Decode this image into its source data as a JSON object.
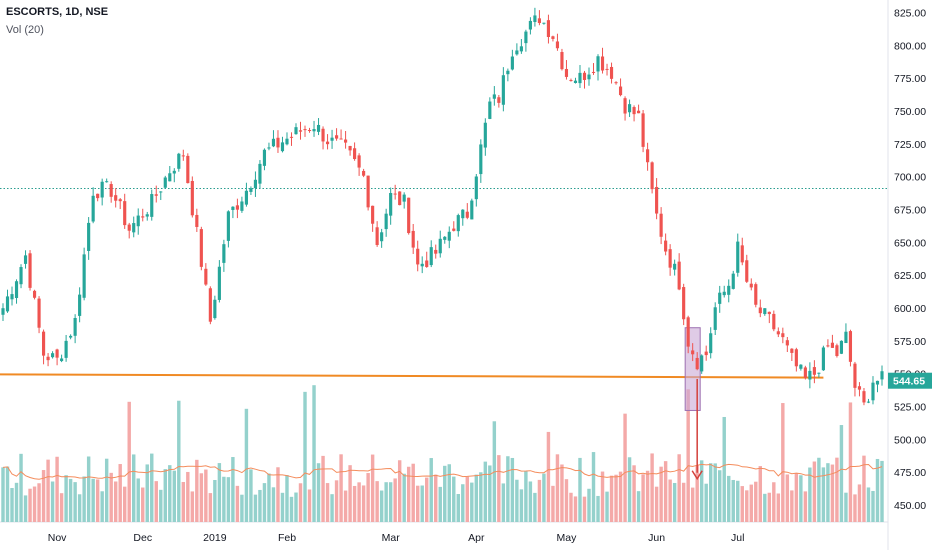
{
  "header": {
    "symbol_line": "ESCORTS, 1D, NSE",
    "volume_indicator": "Vol (20)"
  },
  "colors": {
    "up": "#26a69a",
    "down": "#ef5350",
    "vol_up": "#94d1cc",
    "vol_down": "#f4a9a8",
    "ma": "#f48c5c",
    "support": "#f08a24",
    "dotted": "#2a9d8f",
    "marker": "#d3403a",
    "box_fill": "#c9a8d6",
    "box_stroke": "#9c6fb0"
  },
  "chart_data": {
    "type": "candlestick",
    "title": "ESCORTS, 1D, NSE",
    "y_axis": {
      "ticks": [
        450,
        475,
        500,
        525,
        550,
        575,
        600,
        625,
        650,
        675,
        700,
        725,
        750,
        775,
        800,
        825
      ],
      "ylim": [
        428,
        830
      ]
    },
    "x_axis": {
      "labels": [
        "Nov",
        "Dec",
        "2019",
        "Feb",
        "Mar",
        "Apr",
        "May",
        "Jun",
        "Jul"
      ]
    },
    "last_price": "544.65",
    "horizontal_levels": [
      {
        "style": "dotted",
        "value": 691
      },
      {
        "style": "solid",
        "value": 548
      }
    ],
    "price_path": [
      [
        0,
        600
      ],
      [
        5,
        640
      ],
      [
        9,
        565
      ],
      [
        12,
        560
      ],
      [
        16,
        590
      ],
      [
        20,
        690
      ],
      [
        24,
        690
      ],
      [
        28,
        660
      ],
      [
        33,
        680
      ],
      [
        37,
        705
      ],
      [
        40,
        718
      ],
      [
        44,
        635
      ],
      [
        46,
        590
      ],
      [
        50,
        670
      ],
      [
        54,
        690
      ],
      [
        58,
        718
      ],
      [
        62,
        727
      ],
      [
        66,
        735
      ],
      [
        69,
        740
      ],
      [
        72,
        728
      ],
      [
        76,
        720
      ],
      [
        80,
        700
      ],
      [
        83,
        650
      ],
      [
        86,
        685
      ],
      [
        89,
        680
      ],
      [
        92,
        632
      ],
      [
        96,
        642
      ],
      [
        100,
        664
      ],
      [
        103,
        672
      ],
      [
        105,
        705
      ],
      [
        108,
        755
      ],
      [
        110,
        760
      ],
      [
        113,
        798
      ],
      [
        116,
        810
      ],
      [
        119,
        822
      ],
      [
        122,
        808
      ],
      [
        125,
        778
      ],
      [
        128,
        775
      ],
      [
        132,
        790
      ],
      [
        135,
        780
      ],
      [
        138,
        755
      ],
      [
        141,
        745
      ],
      [
        143,
        705
      ],
      [
        145,
        670
      ],
      [
        147,
        645
      ],
      [
        150,
        620
      ],
      [
        152,
        575
      ],
      [
        154,
        560
      ],
      [
        156,
        565
      ],
      [
        158,
        600
      ],
      [
        161,
        618
      ],
      [
        163,
        645
      ],
      [
        165,
        620
      ],
      [
        167,
        600
      ],
      [
        170,
        590
      ],
      [
        173,
        575
      ],
      [
        175,
        560
      ],
      [
        178,
        545
      ],
      [
        180,
        550
      ],
      [
        183,
        570
      ],
      [
        185,
        565
      ],
      [
        187,
        578
      ],
      [
        189,
        540
      ],
      [
        191,
        525
      ],
      [
        193,
        545
      ]
    ],
    "annotation_box": {
      "date_index_range": [
        152,
        154
      ],
      "price_range": [
        522,
        585
      ]
    },
    "arrow": {
      "date_index": 154,
      "from_price": 546,
      "to_price": 470
    }
  }
}
